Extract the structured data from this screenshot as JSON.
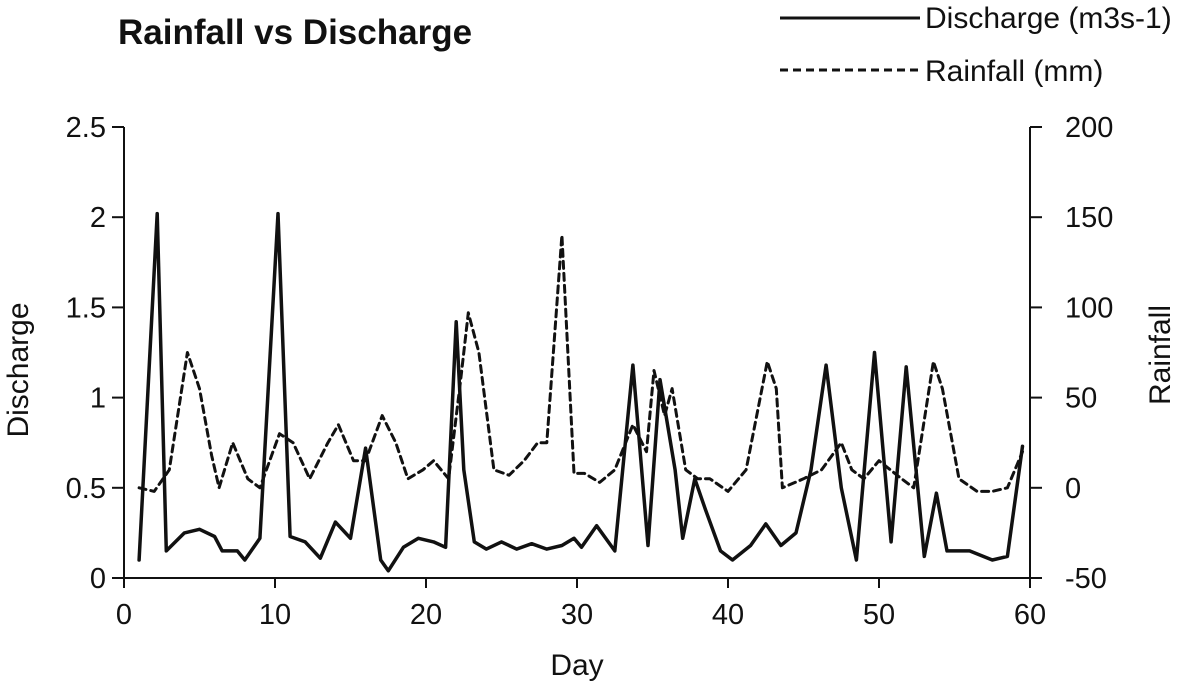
{
  "chart_data": {
    "type": "line",
    "title": "Rainfall vs Discharge",
    "xlabel": "Day",
    "ylabel": "Discharge",
    "ylabel_right": "Rainfall",
    "xlim": [
      0,
      60
    ],
    "ylim": [
      0,
      2.5
    ],
    "ylim_right": [
      -50,
      200
    ],
    "x_ticks": [
      "0",
      "10",
      "20",
      "30",
      "40",
      "50",
      "60"
    ],
    "y_ticks": [
      "0",
      "0.5",
      "1",
      "1.5",
      "2",
      "2.5"
    ],
    "y_ticks_right": [
      "-50",
      "0",
      "50",
      "100",
      "150",
      "200"
    ],
    "grid": false,
    "legend_position": "top-right",
    "series": [
      {
        "name": "Discharge (m3s-1)",
        "axis": "left",
        "style": "solid",
        "color": "#111111",
        "points": [
          [
            1,
            0.1
          ],
          [
            2.2,
            2.02
          ],
          [
            2.8,
            0.15
          ],
          [
            4,
            0.25
          ],
          [
            5,
            0.27
          ],
          [
            6,
            0.23
          ],
          [
            6.5,
            0.15
          ],
          [
            7.5,
            0.15
          ],
          [
            8,
            0.1
          ],
          [
            9,
            0.22
          ],
          [
            10.2,
            2.02
          ],
          [
            11,
            0.23
          ],
          [
            12,
            0.2
          ],
          [
            13,
            0.11
          ],
          [
            14,
            0.31
          ],
          [
            15,
            0.22
          ],
          [
            16,
            0.72
          ],
          [
            17,
            0.1
          ],
          [
            17.5,
            0.04
          ],
          [
            18.5,
            0.17
          ],
          [
            19.5,
            0.22
          ],
          [
            20.5,
            0.2
          ],
          [
            21.3,
            0.17
          ],
          [
            22,
            1.42
          ],
          [
            22.5,
            0.6
          ],
          [
            23.2,
            0.2
          ],
          [
            24,
            0.16
          ],
          [
            25,
            0.2
          ],
          [
            26,
            0.16
          ],
          [
            27,
            0.19
          ],
          [
            28,
            0.16
          ],
          [
            29,
            0.18
          ],
          [
            29.8,
            0.22
          ],
          [
            30.3,
            0.17
          ],
          [
            31.3,
            0.29
          ],
          [
            32.5,
            0.15
          ],
          [
            33.7,
            1.18
          ],
          [
            34.7,
            0.18
          ],
          [
            35.5,
            1.1
          ],
          [
            36.5,
            0.6
          ],
          [
            37,
            0.22
          ],
          [
            37.8,
            0.55
          ],
          [
            38.5,
            0.38
          ],
          [
            39.5,
            0.15
          ],
          [
            40.3,
            0.1
          ],
          [
            41.5,
            0.18
          ],
          [
            42.5,
            0.3
          ],
          [
            43.5,
            0.18
          ],
          [
            44.5,
            0.25
          ],
          [
            45.5,
            0.6
          ],
          [
            46.5,
            1.18
          ],
          [
            47.5,
            0.5
          ],
          [
            48.5,
            0.1
          ],
          [
            49.7,
            1.25
          ],
          [
            50.8,
            0.2
          ],
          [
            51.8,
            1.17
          ],
          [
            53,
            0.12
          ],
          [
            53.8,
            0.47
          ],
          [
            54.5,
            0.15
          ],
          [
            56,
            0.15
          ],
          [
            57.5,
            0.1
          ],
          [
            58.5,
            0.12
          ],
          [
            59.5,
            0.73
          ]
        ]
      },
      {
        "name": "Rainfall (mm)",
        "axis": "right",
        "style": "dashed",
        "color": "#111111",
        "points": [
          [
            1,
            0
          ],
          [
            2,
            -2
          ],
          [
            3,
            10
          ],
          [
            4.2,
            75
          ],
          [
            5,
            55
          ],
          [
            5.8,
            18
          ],
          [
            6.3,
            0
          ],
          [
            7.2,
            25
          ],
          [
            8.2,
            5
          ],
          [
            9,
            0
          ],
          [
            10.3,
            30
          ],
          [
            11.2,
            25
          ],
          [
            12.3,
            5
          ],
          [
            13.5,
            25
          ],
          [
            14.2,
            35
          ],
          [
            15.2,
            15
          ],
          [
            16,
            15
          ],
          [
            17.1,
            40
          ],
          [
            18,
            25
          ],
          [
            18.8,
            5
          ],
          [
            19.8,
            10
          ],
          [
            20.5,
            15
          ],
          [
            21.5,
            5
          ],
          [
            22.3,
            60
          ],
          [
            22.8,
            97
          ],
          [
            23.5,
            75
          ],
          [
            24.5,
            10
          ],
          [
            25.5,
            7
          ],
          [
            26.5,
            15
          ],
          [
            27.4,
            25
          ],
          [
            28,
            25
          ],
          [
            29,
            140
          ],
          [
            29.8,
            8
          ],
          [
            30.5,
            8
          ],
          [
            31.5,
            3
          ],
          [
            32.5,
            10
          ],
          [
            33.7,
            35
          ],
          [
            34.6,
            20
          ],
          [
            35.1,
            65
          ],
          [
            35.8,
            40
          ],
          [
            36.3,
            55
          ],
          [
            37.2,
            10
          ],
          [
            38,
            5
          ],
          [
            38.8,
            5
          ],
          [
            40,
            -2
          ],
          [
            41.2,
            10
          ],
          [
            42.6,
            70
          ],
          [
            43.2,
            55
          ],
          [
            43.6,
            0
          ],
          [
            45,
            5
          ],
          [
            46.2,
            10
          ],
          [
            47.5,
            25
          ],
          [
            48.2,
            10
          ],
          [
            49,
            5
          ],
          [
            50,
            15
          ],
          [
            51.5,
            5
          ],
          [
            52.3,
            0
          ],
          [
            53.6,
            70
          ],
          [
            54.2,
            55
          ],
          [
            55.3,
            5
          ],
          [
            56.5,
            -2
          ],
          [
            57.5,
            -2
          ],
          [
            58.5,
            0
          ],
          [
            59.5,
            20
          ]
        ]
      }
    ]
  }
}
